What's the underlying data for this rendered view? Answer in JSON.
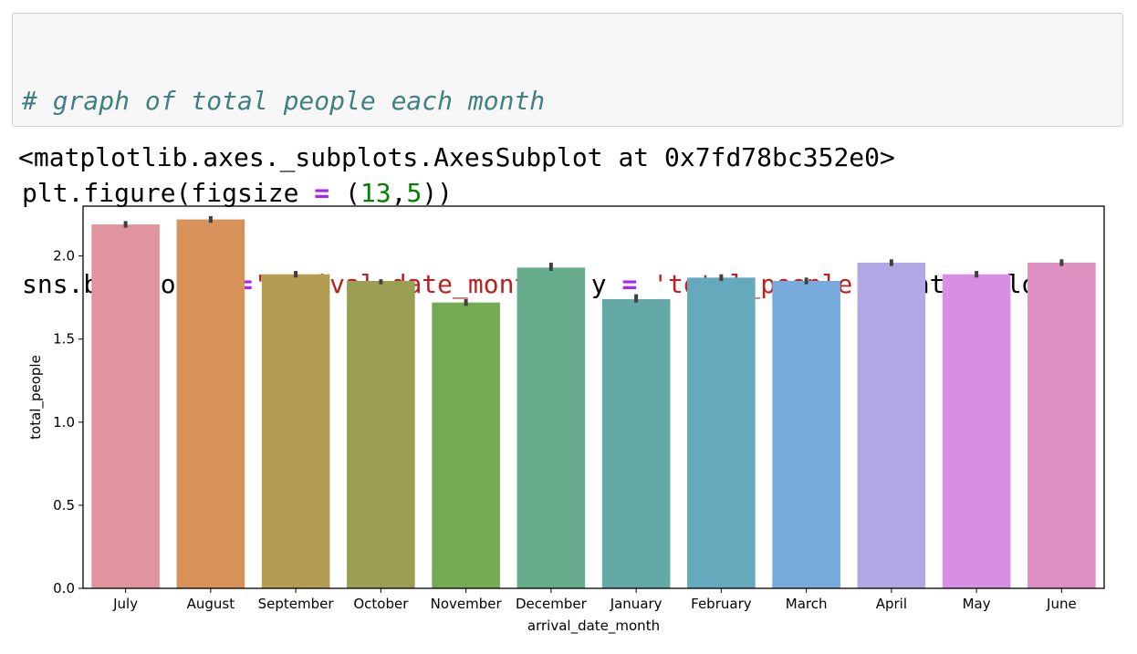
{
  "code_cell": {
    "comment": "# graph of total people each month",
    "line2": {
      "fn": "plt.figure(figsize ",
      "op": "=",
      "open": " (",
      "num1": "13",
      "comma": ",",
      "num2": "5",
      "close": "))"
    },
    "line3": {
      "fn": "sns.barplot(x ",
      "op1": "=",
      "str1": "'arrival_date_month'",
      "mid1": ", y ",
      "op2": "=",
      "sp2": " ",
      "str2": "'total_people'",
      "mid2": ", data ",
      "op3": "=",
      "tail": " ld)"
    }
  },
  "output_text": "<matplotlib.axes._subplots.AxesSubplot at 0x7fd78bc352e0>",
  "chart_data": {
    "type": "bar",
    "xlabel": "arrival_date_month",
    "ylabel": "total_people",
    "ylim": [
      0,
      2.3
    ],
    "yticks": [
      0.0,
      0.5,
      1.0,
      1.5,
      2.0
    ],
    "ytick_labels": [
      "0.0",
      "0.5",
      "1.0",
      "1.5",
      "2.0"
    ],
    "categories": [
      "July",
      "August",
      "September",
      "October",
      "November",
      "December",
      "January",
      "February",
      "March",
      "April",
      "May",
      "June"
    ],
    "values": [
      2.19,
      2.22,
      1.89,
      1.85,
      1.72,
      1.93,
      1.74,
      1.87,
      1.85,
      1.96,
      1.89,
      1.96
    ],
    "error_low": [
      2.17,
      2.2,
      1.87,
      1.83,
      1.7,
      1.91,
      1.72,
      1.85,
      1.83,
      1.94,
      1.87,
      1.94
    ],
    "error_high": [
      2.21,
      2.24,
      1.91,
      1.86,
      1.74,
      1.96,
      1.77,
      1.89,
      1.87,
      1.98,
      1.91,
      1.98
    ],
    "colors": [
      "#e0949e",
      "#d69259",
      "#b39d53",
      "#9a9f53",
      "#73aa53",
      "#66ac8d",
      "#64a9a5",
      "#66a9bc",
      "#78aadb",
      "#b3a7e5",
      "#d68fe3",
      "#de91c2"
    ],
    "grid": false,
    "legend": "none"
  }
}
